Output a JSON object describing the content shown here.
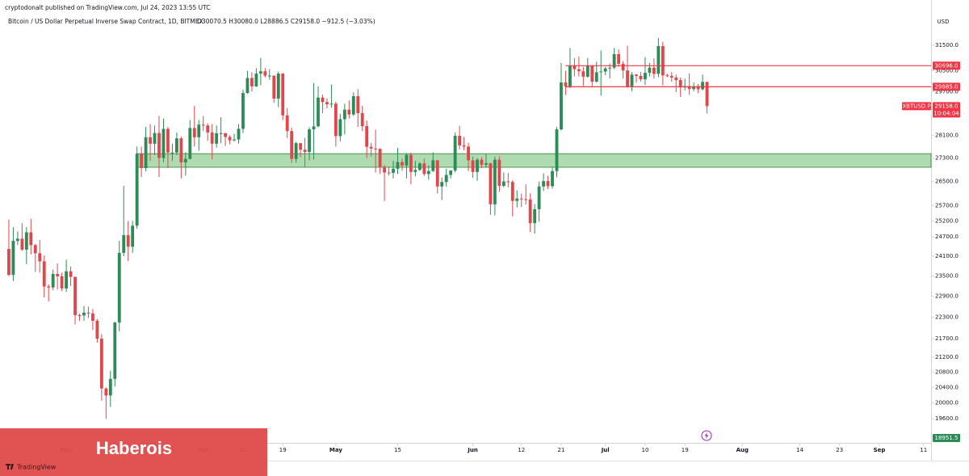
{
  "header": {
    "publisher": "cryptodonalt published on TradingView.com, Jul 24, 2023 13:55 UTC"
  },
  "chart_data": {
    "type": "candlestick",
    "title": "Bitcoin / US Dollar Perpetual Inverse Swap Contract, 1D, BITMEX",
    "ohlc_line": "O30070.5 H30080.0 L28886.5 C29158.0 −912.5 (−3.03%)",
    "currency": "USD",
    "log_scale": true,
    "up_color": "#2e8b57",
    "down_color": "#e0474c",
    "open": [
      24320,
      23530,
      24570,
      24640,
      24300,
      24840,
      24440,
      24190,
      23940,
      23190,
      23160,
      23560,
      23490,
      23130,
      23640,
      23470,
      22360,
      22350,
      22430,
      22410,
      22200,
      21700,
      20370,
      20190,
      20620,
      22150,
      24200,
      24750,
      24390,
      25050,
      27450,
      26950,
      28030,
      27800,
      28180,
      27300,
      28330,
      27490,
      27490,
      27990,
      27150,
      27270,
      28360,
      28030,
      28480,
      28450,
      28200,
      27800,
      28170,
      28170,
      28040,
      27920,
      27950,
      28330,
      29650,
      30220,
      29900,
      30390,
      30480,
      30310,
      30310,
      29440,
      30390,
      28820,
      28250,
      27270,
      27820,
      27590,
      27510,
      28310,
      28420,
      29480,
      29310,
      29230,
      29250,
      28070,
      28680,
      29030,
      28850,
      29530,
      28900,
      28430,
      27690,
      27630,
      27620,
      26980,
      26800,
      26790,
      26930,
      27160,
      27040,
      27410,
      26820,
      26890,
      27110,
      26750,
      26850,
      27220,
      26330,
      26480,
      26720,
      26870,
      28080,
      27740,
      27700,
      27220,
      26820,
      27240,
      27070,
      27120,
      25740,
      27240,
      26350,
      26500,
      26480,
      25850,
      25930,
      25910,
      25900,
      25130,
      25580,
      26330,
      26510,
      26340,
      26850,
      28310,
      30050,
      29900,
      30700,
      30560,
      30480,
      30270,
      30700,
      30080,
      30440,
      30470,
      30590,
      30620,
      31150,
      30770,
      30510,
      29900,
      30350,
      30300,
      30170,
      30420,
      30620,
      30380,
      31470,
      30320,
      30300,
      30240,
      30140,
      29860,
      29910,
      29800,
      29900,
      29790,
      30070.5
    ],
    "high": [
      25250,
      25000,
      24870,
      25130,
      25000,
      25270,
      24480,
      24600,
      24120,
      23250,
      23690,
      23880,
      23600,
      23990,
      23790,
      23490,
      22400,
      22620,
      22600,
      22530,
      22250,
      21830,
      20400,
      20830,
      22170,
      24570,
      26350,
      25200,
      25200,
      27700,
      27700,
      28400,
      28500,
      28450,
      28800,
      28700,
      28400,
      27800,
      28200,
      28050,
      27500,
      28650,
      29170,
      28650,
      28800,
      28530,
      28500,
      28450,
      28750,
      28190,
      28100,
      28150,
      28500,
      29770,
      30500,
      30440,
      30600,
      31000,
      30600,
      30560,
      30320,
      30470,
      30410,
      29090,
      28370,
      27870,
      27820,
      28000,
      28390,
      30030,
      29900,
      29590,
      29450,
      29970,
      29330,
      28880,
      29250,
      29370,
      29670,
      29800,
      29170,
      28630,
      27830,
      28300,
      27640,
      27060,
      27000,
      27200,
      27650,
      27270,
      27470,
      27480,
      27200,
      27150,
      27280,
      27050,
      27500,
      27230,
      26630,
      26930,
      26880,
      28200,
      28440,
      28040,
      27830,
      27350,
      27300,
      27330,
      27450,
      27130,
      27350,
      27360,
      26800,
      26780,
      26540,
      26200,
      26090,
      26400,
      26100,
      25750,
      26500,
      26770,
      26690,
      27000,
      28400,
      30800,
      30500,
      31400,
      31000,
      31050,
      30650,
      31000,
      30720,
      30850,
      31300,
      30650,
      30780,
      31400,
      31330,
      30880,
      31480,
      30450,
      30380,
      30450,
      31030,
      30800,
      30980,
      31800,
      31640,
      30390,
      30450,
      30350,
      30240,
      30190,
      30400,
      30050,
      29990,
      30350,
      30080
    ],
    "low": [
      23500,
      23350,
      24440,
      24260,
      23860,
      24150,
      23620,
      23600,
      22870,
      22750,
      23080,
      23100,
      23050,
      23030,
      23200,
      22100,
      22200,
      22200,
      22280,
      21940,
      21590,
      20060,
      19600,
      19900,
      20420,
      21900,
      24100,
      23950,
      24200,
      24950,
      26650,
      26840,
      27200,
      27400,
      26650,
      27150,
      26950,
      27200,
      27400,
      26600,
      26700,
      27250,
      27700,
      27550,
      28250,
      27900,
      27250,
      27660,
      27820,
      27720,
      27780,
      27880,
      27800,
      28180,
      29620,
      29700,
      29880,
      29950,
      30240,
      30150,
      29280,
      29120,
      28650,
      28000,
      27130,
      27140,
      27330,
      26970,
      27220,
      27250,
      28390,
      28900,
      29080,
      29100,
      27700,
      27880,
      28130,
      28700,
      28800,
      28400,
      28250,
      27300,
      27350,
      26800,
      26750,
      25850,
      26700,
      26600,
      26750,
      26860,
      26600,
      26400,
      26670,
      26850,
      26680,
      26560,
      26820,
      26100,
      25880,
      26330,
      26600,
      26800,
      27600,
      27570,
      26850,
      26620,
      26520,
      26950,
      26970,
      25400,
      25380,
      26150,
      26300,
      26300,
      25350,
      25640,
      25650,
      25730,
      24850,
      24800,
      25180,
      26180,
      26240,
      26260,
      26640,
      28270,
      29570,
      29830,
      30280,
      30280,
      29920,
      30230,
      29900,
      30050,
      29550,
      30330,
      30200,
      30560,
      30650,
      30200,
      29850,
      29720,
      30050,
      30080,
      29950,
      30280,
      30200,
      30250,
      29940,
      30250,
      30080,
      29680,
      29500,
      29750,
      29580,
      29720,
      29640,
      29750,
      28886.5
    ],
    "close": [
      23530,
      24570,
      24640,
      24300,
      24840,
      24440,
      24190,
      23940,
      23190,
      23160,
      23560,
      23490,
      23130,
      23640,
      23470,
      22360,
      22350,
      22430,
      22410,
      22200,
      21700,
      20370,
      20190,
      20620,
      22150,
      24200,
      24750,
      24390,
      25050,
      27450,
      26950,
      28030,
      27800,
      28180,
      27300,
      28330,
      27490,
      27490,
      27990,
      27150,
      27270,
      28360,
      28030,
      28480,
      28450,
      28200,
      27800,
      28170,
      28170,
      28040,
      27920,
      27950,
      28330,
      29650,
      30220,
      29900,
      30390,
      30480,
      30310,
      30310,
      29440,
      30390,
      28820,
      28250,
      27270,
      27820,
      27590,
      27510,
      28310,
      28420,
      29480,
      29310,
      29230,
      29250,
      28070,
      28680,
      29030,
      28850,
      29530,
      28900,
      28430,
      27690,
      27630,
      27620,
      26980,
      26800,
      26790,
      26930,
      27160,
      27040,
      27410,
      26820,
      26890,
      27110,
      26750,
      26850,
      27220,
      26330,
      26480,
      26720,
      26870,
      28080,
      27740,
      27700,
      27220,
      26820,
      27240,
      27070,
      27120,
      25740,
      27240,
      26350,
      26500,
      26480,
      25850,
      25930,
      25910,
      25900,
      25130,
      25580,
      26330,
      26510,
      26340,
      26850,
      28310,
      30050,
      29900,
      30700,
      30560,
      30480,
      30270,
      30700,
      30080,
      30440,
      30470,
      30590,
      30620,
      31150,
      30770,
      30510,
      29900,
      30350,
      30300,
      30170,
      30420,
      30620,
      30380,
      31470,
      30320,
      30300,
      30240,
      30140,
      29860,
      29910,
      29800,
      29900,
      29790,
      30070.5,
      29158
    ],
    "xlim": [
      -2,
      208.7
    ],
    "xticks": [
      {
        "value": 13,
        "label": "Mar"
      },
      {
        "value": 44,
        "label": "Apr"
      },
      {
        "value": 53,
        "label": "10"
      },
      {
        "value": 62,
        "label": "19"
      },
      {
        "value": 74,
        "label": "May"
      },
      {
        "value": 88,
        "label": "15"
      },
      {
        "value": 105,
        "label": "Jun"
      },
      {
        "value": 116,
        "label": "12"
      },
      {
        "value": 125,
        "label": "21"
      },
      {
        "value": 135,
        "label": "Jul"
      },
      {
        "value": 144,
        "label": "10"
      },
      {
        "value": 153,
        "label": "19"
      },
      {
        "value": 166,
        "label": "Aug"
      },
      {
        "value": 179,
        "label": "14"
      },
      {
        "value": 188,
        "label": "23"
      },
      {
        "value": 197,
        "label": "Sep"
      },
      {
        "value": 207,
        "label": "11"
      }
    ],
    "ylim": [
      19010,
      32690
    ],
    "yticks": [
      {
        "value": 31500,
        "label": "31500.0"
      },
      {
        "value": 30500,
        "label": "30500.0"
      },
      {
        "value": 29700,
        "label": "29700.0"
      },
      {
        "value": 28100,
        "label": "28100.0"
      },
      {
        "value": 27300,
        "label": "27300.0"
      },
      {
        "value": 26500,
        "label": "26500.0"
      },
      {
        "value": 25700,
        "label": "25700.0"
      },
      {
        "value": 25200,
        "label": "25200.0"
      },
      {
        "value": 24700,
        "label": "24700.0"
      },
      {
        "value": 24100,
        "label": "24100.0"
      },
      {
        "value": 23500,
        "label": "23500.0"
      },
      {
        "value": 22900,
        "label": "22900.0"
      },
      {
        "value": 22300,
        "label": "22300.0"
      },
      {
        "value": 21700,
        "label": "21700.0"
      },
      {
        "value": 21200,
        "label": "21200.0"
      },
      {
        "value": 20800,
        "label": "20800.0"
      },
      {
        "value": 20400,
        "label": "20400.0"
      },
      {
        "value": 20000,
        "label": "20000.0"
      },
      {
        "value": 19600,
        "label": "19600.0"
      }
    ],
    "levels": [
      {
        "value": 30696,
        "label": "30696.0",
        "x_start": 126,
        "color": "#f23645"
      },
      {
        "value": 29885,
        "label": "29885.0",
        "x_start": 126,
        "color": "#f23645"
      }
    ],
    "zone": {
      "low": 26980,
      "high": 27450,
      "x_start": 29,
      "color": "#4caf50"
    },
    "last_price": {
      "symbol": "XBTUSD.P",
      "value": 29158,
      "label": "29158.0",
      "countdown": "10:04:04",
      "color": "#f23645"
    },
    "low_marker": {
      "value": 18951.5,
      "label": "18951.5",
      "color": "#2e8b57"
    }
  },
  "watermark": {
    "text": "Haberois",
    "brand": "TradingView"
  }
}
